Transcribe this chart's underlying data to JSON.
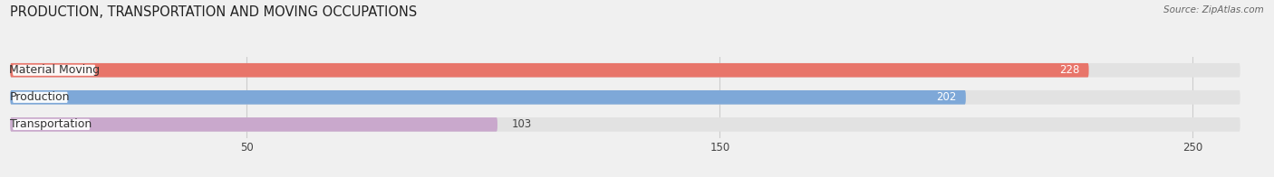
{
  "title": "PRODUCTION, TRANSPORTATION AND MOVING OCCUPATIONS",
  "source": "Source: ZipAtlas.com",
  "categories": [
    "Material Moving",
    "Production",
    "Transportation"
  ],
  "values": [
    228,
    202,
    103
  ],
  "bar_colors": [
    "#e8756a",
    "#7ea8d8",
    "#c9a8cc"
  ],
  "xlim_max": 265,
  "xticks": [
    50,
    150,
    250
  ],
  "bar_height": 0.52,
  "figsize": [
    14.06,
    1.96
  ],
  "dpi": 100,
  "title_fontsize": 10.5,
  "label_fontsize": 9.0,
  "value_fontsize": 8.5,
  "background_color": "#f0f0f0",
  "container_color": "#e2e2e2",
  "label_box_color": "#ffffff",
  "label_text_color": "#333333",
  "grid_color": "#cccccc",
  "source_color": "#666666"
}
